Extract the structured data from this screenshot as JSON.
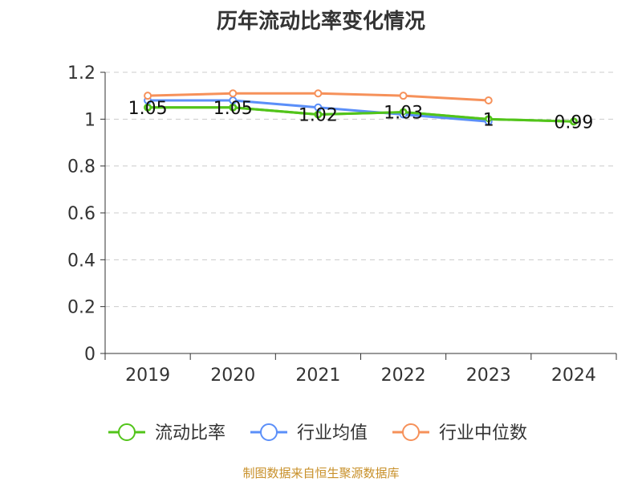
{
  "chart_data": {
    "type": "line",
    "title": "历年流动比率变化情况",
    "categories": [
      "2019",
      "2020",
      "2021",
      "2022",
      "2023",
      "2024"
    ],
    "ylim": [
      0,
      1.2
    ],
    "yticks": [
      "0",
      "0.2",
      "0.4",
      "0.6",
      "0.8",
      "1",
      "1.2"
    ],
    "grid": true,
    "legend_position": "bottom",
    "series": [
      {
        "name": "流动比率",
        "color": "#52c41a",
        "values": [
          1.05,
          1.05,
          1.02,
          1.03,
          1.0,
          0.99
        ],
        "labels": [
          "1.05",
          "1.05",
          "1.02",
          "1.03",
          "1",
          "0.99"
        ]
      },
      {
        "name": "行业均值",
        "color": "#5b8ff9",
        "values": [
          1.08,
          1.08,
          1.05,
          1.02,
          0.99,
          null
        ]
      },
      {
        "name": "行业中位数",
        "color": "#f6915a",
        "values": [
          1.1,
          1.11,
          1.11,
          1.1,
          1.08,
          null
        ]
      }
    ]
  },
  "footer": "制图数据来自恒生聚源数据库"
}
